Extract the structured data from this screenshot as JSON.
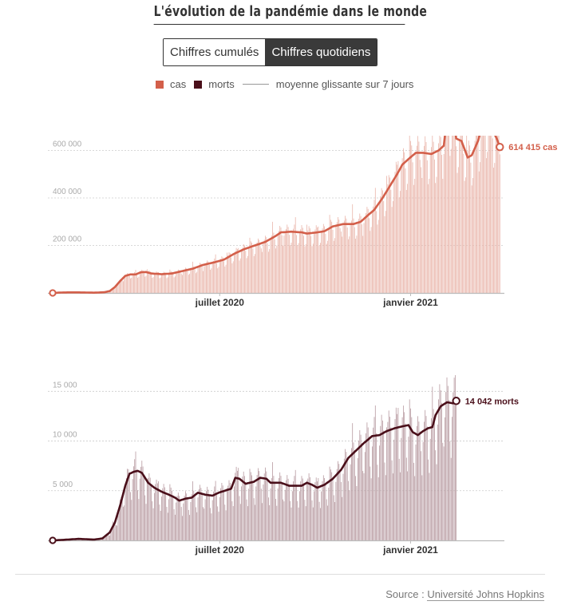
{
  "title": "L'évolution de la pandémie dans le monde",
  "toggle": {
    "options": [
      "Chiffres cumulés",
      "Chiffres quotidiens"
    ],
    "selected": "Chiffres quotidiens"
  },
  "legend": {
    "cases_label": "cas",
    "deaths_label": "morts",
    "avg_label": "moyenne glissante sur 7 jours"
  },
  "colors": {
    "cases": "#d35f4a",
    "cases_bar": "#eab5aa",
    "deaths": "#4a0f1a",
    "deaths_bar": "#b79aa0",
    "grid": "#cccccc",
    "axis": "#bbbbbb"
  },
  "source": {
    "prefix": "Source :",
    "link_text": "Université Johns Hopkins"
  },
  "chart_data": [
    {
      "type": "bar",
      "name": "cas",
      "title": "Cas quotidiens",
      "x_start": "2020-01-22",
      "x_end": "2021-02-10",
      "ylim": [
        0,
        820000
      ],
      "yticks": [
        200000,
        400000,
        600000
      ],
      "ytick_labels": [
        "200 000",
        "400 000",
        "600 000"
      ],
      "xticks": [
        {
          "date": "2020-07-01",
          "label": "juillet 2020"
        },
        {
          "date": "2021-01-01",
          "label": "janvier 2021"
        }
      ],
      "end_label": "614 415 cas",
      "end_value": 614415,
      "moving_average_7d": [
        [
          0,
          0
        ],
        [
          10,
          2000
        ],
        [
          20,
          2500
        ],
        [
          30,
          2000
        ],
        [
          40,
          1000
        ],
        [
          50,
          3000
        ],
        [
          55,
          8000
        ],
        [
          60,
          25000
        ],
        [
          65,
          50000
        ],
        [
          70,
          72000
        ],
        [
          75,
          78000
        ],
        [
          80,
          78000
        ],
        [
          85,
          87000
        ],
        [
          90,
          88000
        ],
        [
          95,
          82000
        ],
        [
          105,
          79000
        ],
        [
          115,
          82000
        ],
        [
          125,
          92000
        ],
        [
          135,
          102000
        ],
        [
          145,
          118000
        ],
        [
          155,
          128000
        ],
        [
          165,
          140000
        ],
        [
          175,
          165000
        ],
        [
          185,
          185000
        ],
        [
          195,
          200000
        ],
        [
          205,
          215000
        ],
        [
          215,
          240000
        ],
        [
          220,
          255000
        ],
        [
          230,
          258000
        ],
        [
          240,
          255000
        ],
        [
          245,
          250000
        ],
        [
          255,
          255000
        ],
        [
          262,
          260000
        ],
        [
          270,
          280000
        ],
        [
          280,
          290000
        ],
        [
          290,
          290000
        ],
        [
          297,
          300000
        ],
        [
          302,
          320000
        ],
        [
          310,
          350000
        ],
        [
          318,
          400000
        ],
        [
          325,
          450000
        ],
        [
          332,
          500000
        ],
        [
          337,
          540000
        ],
        [
          342,
          560000
        ],
        [
          350,
          590000
        ],
        [
          357,
          590000
        ],
        [
          365,
          585000
        ],
        [
          372,
          600000
        ],
        [
          377,
          620000
        ],
        [
          380,
          740000
        ],
        [
          386,
          740000
        ],
        [
          389,
          650000
        ],
        [
          394,
          640000
        ],
        [
          400,
          570000
        ],
        [
          404,
          580000
        ],
        [
          410,
          640000
        ],
        [
          416,
          735000
        ],
        [
          420,
          720000
        ],
        [
          428,
          650000
        ],
        [
          431,
          614415
        ]
      ],
      "daily_jitter_pattern": [
        1.0,
        1.05,
        1.12,
        1.08,
        0.95,
        0.78,
        0.82
      ]
    },
    {
      "type": "bar",
      "name": "morts",
      "title": "Morts quotidiennes",
      "x_start": "2020-01-22",
      "x_end": "2021-02-10",
      "ylim": [
        0,
        18000
      ],
      "yticks": [
        5000,
        10000,
        15000
      ],
      "ytick_labels": [
        "5 000",
        "10 000",
        "15 000"
      ],
      "xticks": [
        {
          "date": "2020-07-01",
          "label": "juillet 2020"
        },
        {
          "date": "2021-01-01",
          "label": "janvier 2021"
        }
      ],
      "end_label": "14 042 morts",
      "end_value": 14042,
      "moving_average_7d": [
        [
          0,
          0
        ],
        [
          10,
          50
        ],
        [
          25,
          150
        ],
        [
          40,
          80
        ],
        [
          48,
          200
        ],
        [
          55,
          800
        ],
        [
          60,
          1800
        ],
        [
          65,
          3500
        ],
        [
          70,
          5500
        ],
        [
          74,
          6700
        ],
        [
          78,
          6900
        ],
        [
          82,
          7000
        ],
        [
          86,
          6800
        ],
        [
          92,
          5800
        ],
        [
          98,
          5300
        ],
        [
          105,
          4900
        ],
        [
          112,
          4600
        ],
        [
          118,
          4300
        ],
        [
          122,
          4000
        ],
        [
          128,
          4200
        ],
        [
          134,
          4300
        ],
        [
          140,
          4800
        ],
        [
          147,
          4600
        ],
        [
          154,
          4500
        ],
        [
          160,
          4800
        ],
        [
          166,
          5000
        ],
        [
          172,
          5200
        ],
        [
          176,
          6300
        ],
        [
          180,
          6200
        ],
        [
          186,
          5700
        ],
        [
          194,
          5900
        ],
        [
          200,
          6300
        ],
        [
          206,
          6200
        ],
        [
          210,
          5800
        ],
        [
          220,
          5800
        ],
        [
          228,
          5500
        ],
        [
          234,
          5500
        ],
        [
          240,
          5500
        ],
        [
          245,
          5800
        ],
        [
          250,
          5600
        ],
        [
          255,
          5300
        ],
        [
          262,
          5600
        ],
        [
          270,
          6200
        ],
        [
          278,
          7100
        ],
        [
          285,
          8300
        ],
        [
          292,
          9000
        ],
        [
          300,
          9800
        ],
        [
          308,
          10500
        ],
        [
          315,
          10600
        ],
        [
          322,
          11000
        ],
        [
          330,
          11300
        ],
        [
          338,
          11500
        ],
        [
          343,
          11600
        ],
        [
          347,
          10900
        ],
        [
          352,
          10600
        ],
        [
          357,
          11000
        ],
        [
          362,
          11300
        ],
        [
          366,
          11400
        ],
        [
          369,
          12600
        ],
        [
          374,
          13500
        ],
        [
          380,
          13900
        ],
        [
          386,
          13800
        ],
        [
          389,
          14042
        ]
      ],
      "daily_jitter_pattern": [
        0.9,
        1.08,
        1.18,
        1.12,
        1.02,
        0.72,
        0.6
      ]
    }
  ]
}
